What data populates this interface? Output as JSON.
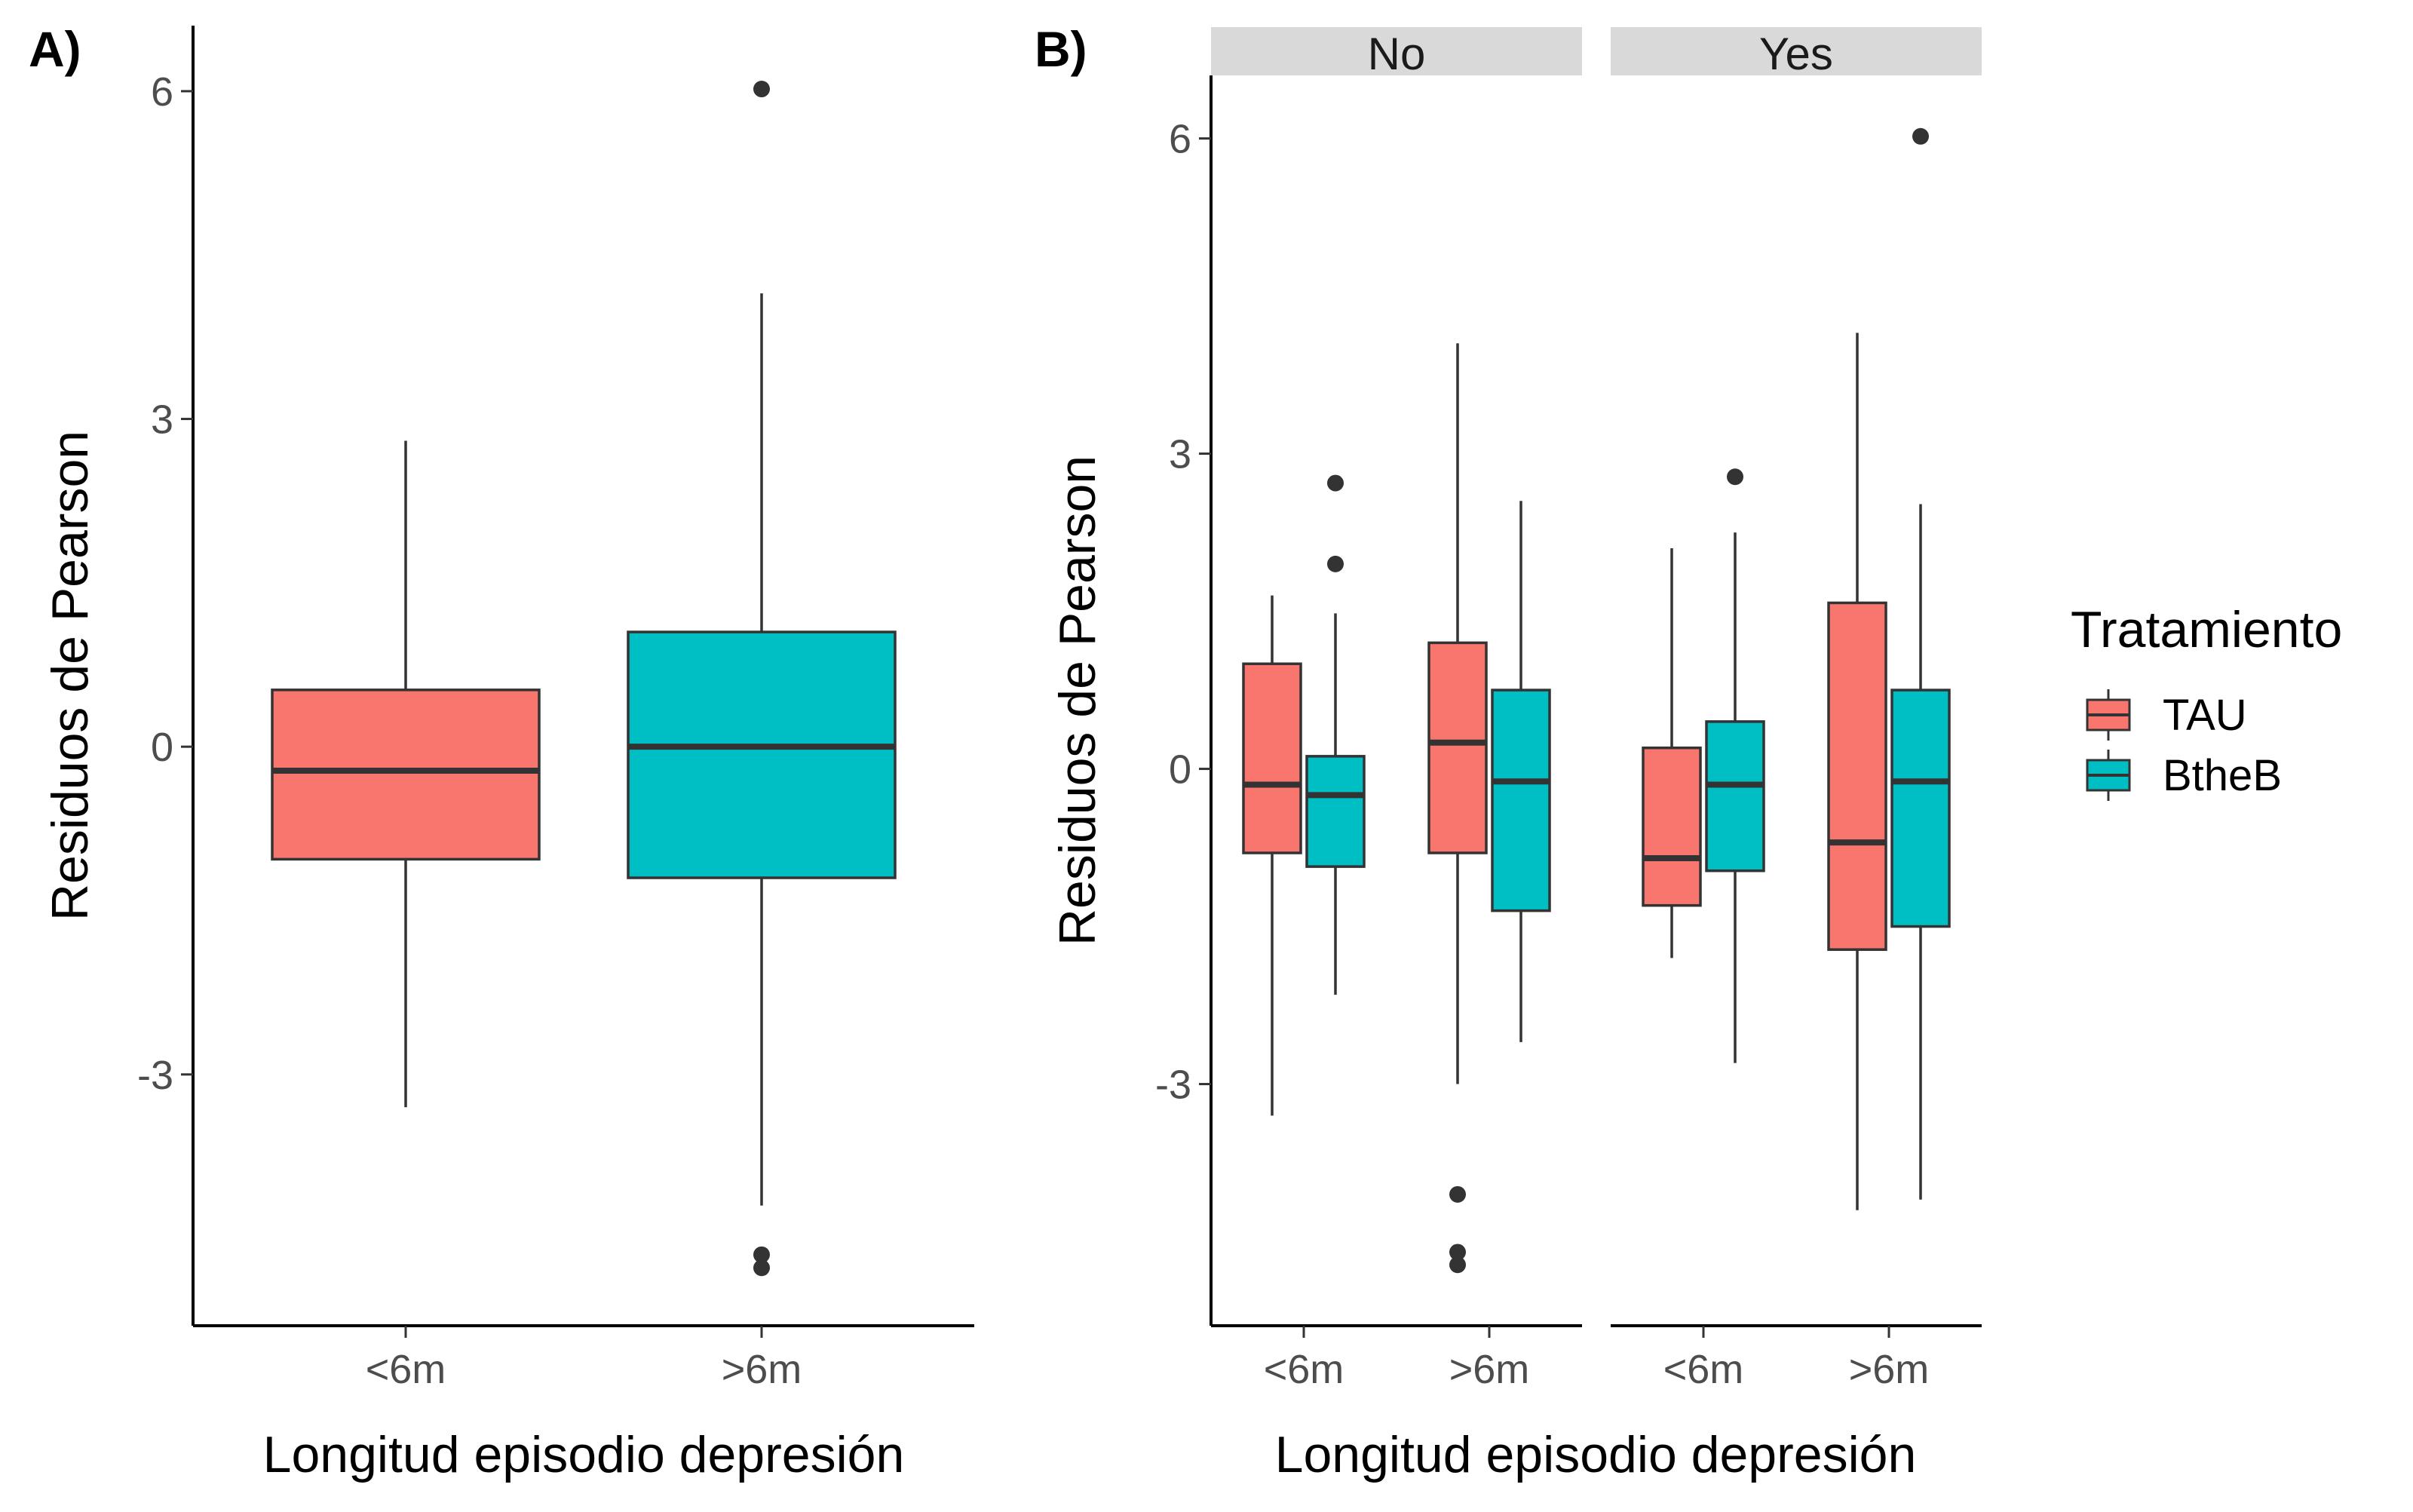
{
  "chart_data": [
    {
      "panel": "A)",
      "type": "boxplot",
      "xlabel": "Longitud episodio depresión",
      "ylabel": "Residuos de Pearson",
      "ylim": [
        -5.3,
        6.6
      ],
      "yticks": [
        -3,
        0,
        3,
        6
      ],
      "ytick_labels": [
        "-3",
        "0",
        "3",
        "6"
      ],
      "categories": [
        "<6m",
        ">6m"
      ],
      "boxes": [
        {
          "category": "<6m",
          "color": "#F8766D",
          "min": -3.3,
          "q1": -1.03,
          "median": -0.22,
          "q3": 0.52,
          "max": 2.8,
          "outliers": []
        },
        {
          "category": ">6m",
          "color": "#00BFC4",
          "min": -4.2,
          "q1": -1.2,
          "median": 0.0,
          "q3": 1.05,
          "max": 4.15,
          "outliers": [
            6.02,
            -4.65,
            -4.77
          ]
        }
      ]
    },
    {
      "panel": "B)",
      "type": "boxplot",
      "xlabel": "Longitud episodio depresión",
      "ylabel": "Residuos de Pearson",
      "ylim": [
        -5.3,
        6.6
      ],
      "yticks": [
        -3,
        0,
        3,
        6
      ],
      "ytick_labels": [
        "-3",
        "0",
        "3",
        "6"
      ],
      "legend": {
        "title": "Tratamiento",
        "position": "right",
        "entries": [
          {
            "label": "TAU",
            "color": "#F8766D"
          },
          {
            "label": "BtheB",
            "color": "#00BFC4"
          }
        ]
      },
      "facets": [
        {
          "strip": "No",
          "categories": [
            "<6m",
            ">6m"
          ],
          "boxes": [
            {
              "category": "<6m",
              "group": "TAU",
              "min": -3.3,
              "q1": -0.8,
              "median": -0.15,
              "q3": 1.0,
              "max": 1.65,
              "outliers": []
            },
            {
              "category": "<6m",
              "group": "BtheB",
              "min": -2.15,
              "q1": -0.93,
              "median": -0.25,
              "q3": 0.12,
              "max": 1.48,
              "outliers": [
                2.72,
                1.95
              ]
            },
            {
              "category": ">6m",
              "group": "TAU",
              "min": -3.0,
              "q1": -0.8,
              "median": 0.25,
              "q3": 1.2,
              "max": 4.05,
              "outliers": [
                -4.05,
                -4.6,
                -4.72
              ]
            },
            {
              "category": ">6m",
              "group": "BtheB",
              "min": -2.6,
              "q1": -1.35,
              "median": -0.12,
              "q3": 0.75,
              "max": 2.55,
              "outliers": []
            }
          ]
        },
        {
          "strip": "Yes",
          "categories": [
            "<6m",
            ">6m"
          ],
          "boxes": [
            {
              "category": "<6m",
              "group": "TAU",
              "min": -1.8,
              "q1": -1.3,
              "median": -0.85,
              "q3": 0.2,
              "max": 2.1,
              "outliers": []
            },
            {
              "category": "<6m",
              "group": "BtheB",
              "min": -2.8,
              "q1": -0.97,
              "median": -0.15,
              "q3": 0.45,
              "max": 2.25,
              "outliers": [
                2.78
              ]
            },
            {
              "category": ">6m",
              "group": "TAU",
              "min": -4.2,
              "q1": -1.72,
              "median": -0.7,
              "q3": 1.58,
              "max": 4.15,
              "outliers": []
            },
            {
              "category": ">6m",
              "group": "BtheB",
              "min": -4.1,
              "q1": -1.5,
              "median": -0.12,
              "q3": 0.75,
              "max": 2.52,
              "outliers": [
                6.02
              ]
            }
          ]
        }
      ]
    }
  ]
}
